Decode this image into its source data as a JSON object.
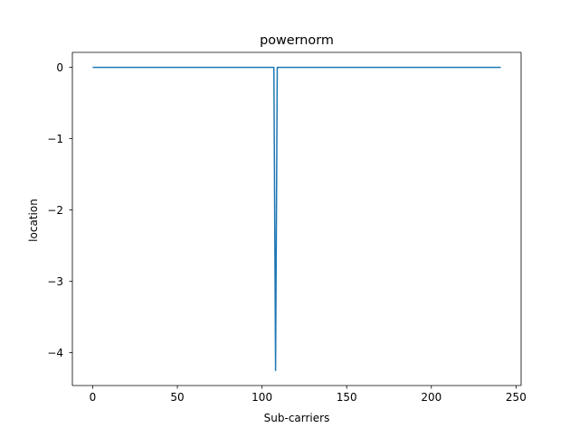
{
  "chart_data": {
    "type": "line",
    "title": "powernorm",
    "xlabel": "Sub-carriers",
    "ylabel": "location",
    "xlim": [
      -12,
      253
    ],
    "ylim": [
      -4.46,
      0.21
    ],
    "xticks": [
      0,
      50,
      100,
      150,
      200,
      250
    ],
    "xtick_labels": [
      "0",
      "50",
      "100",
      "150",
      "200",
      "250"
    ],
    "yticks": [
      0,
      -1,
      -2,
      -3,
      -4
    ],
    "ytick_labels": [
      "0",
      "−1",
      "−2",
      "−3",
      "−4"
    ],
    "grid": false,
    "legend": "none",
    "series": [
      {
        "color": "#1f77b4",
        "x": [
          0,
          107,
          108,
          109,
          241
        ],
        "y": [
          0,
          0,
          -4.25,
          0,
          0
        ]
      }
    ]
  }
}
